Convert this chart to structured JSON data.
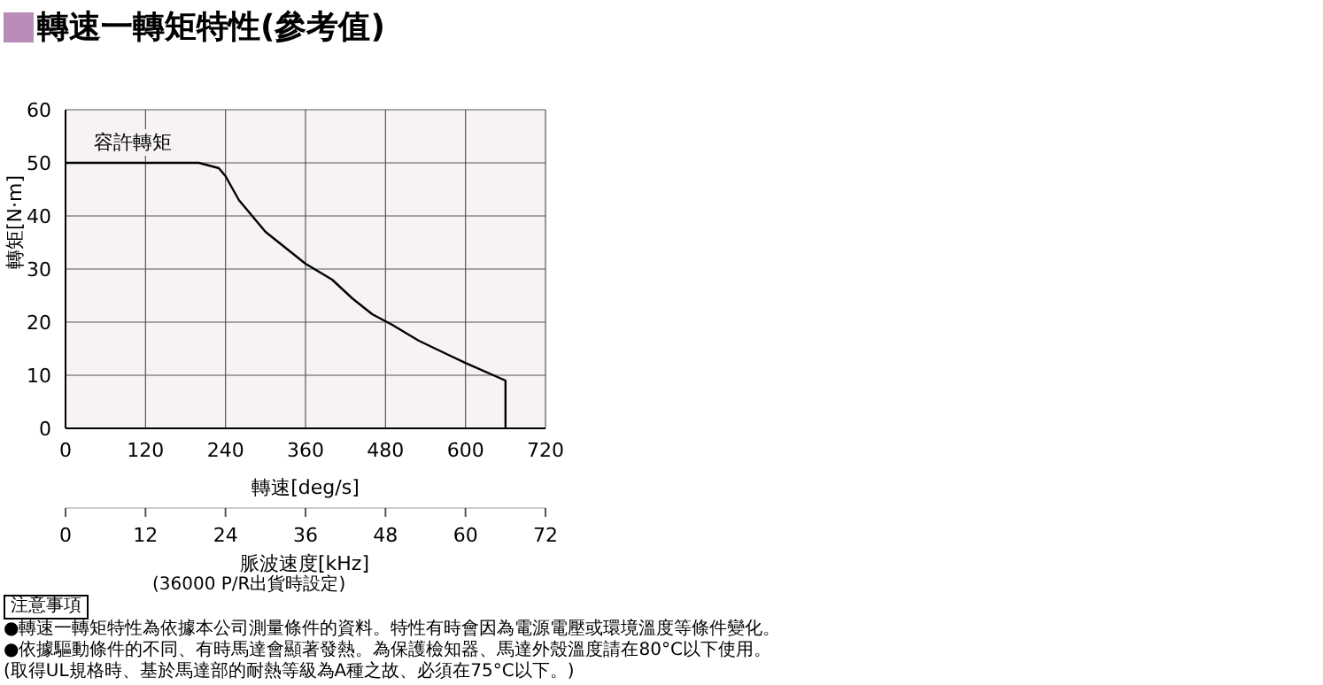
{
  "chart_data": {
    "type": "line",
    "title": "轉速一轉矩特性(參考值)",
    "xlabel": "轉速[deg/s]",
    "ylabel": "轉矩[N·m]",
    "x2label": "脈波速度[kHz]",
    "x": [
      0,
      200,
      230,
      240,
      260,
      300,
      360,
      400,
      430,
      460,
      490,
      530,
      600,
      660,
      660
    ],
    "series": [
      {
        "color": "#000000",
        "values": [
          50,
          50,
          49,
          47.5,
          43,
          37,
          31,
          28,
          24.5,
          21.5,
          19.5,
          16.5,
          12.3,
          9,
          0
        ]
      }
    ],
    "xlim": [
      0,
      720
    ],
    "xticks": [
      0,
      120,
      240,
      360,
      480,
      600,
      720
    ],
    "ylim": [
      0,
      60
    ],
    "yticks": [
      0,
      10,
      20,
      30,
      40,
      50,
      60
    ],
    "x2lim": [
      0,
      72
    ],
    "x2ticks": [
      0,
      12,
      24,
      36,
      48,
      60,
      72
    ],
    "grid": true,
    "legend": false,
    "marker": "none",
    "line_style": "solid",
    "annotations": [
      "容許轉矩",
      "(36000 P/R出貨時設定)",
      "注意事項",
      "●轉速一轉矩特性為依據本公司測量條件的資料。特性有時會因為電源電壓或環境溫度等條件變化。",
      "●依據驅動條件的不同、有時馬達會顯著發熱。為保護檢知器、馬達外殼溫度請在80°C以下使用。",
      "(取得UL規格時、基於馬達部的耐熱等級為A種之故、必須在75°C以下。)"
    ]
  }
}
